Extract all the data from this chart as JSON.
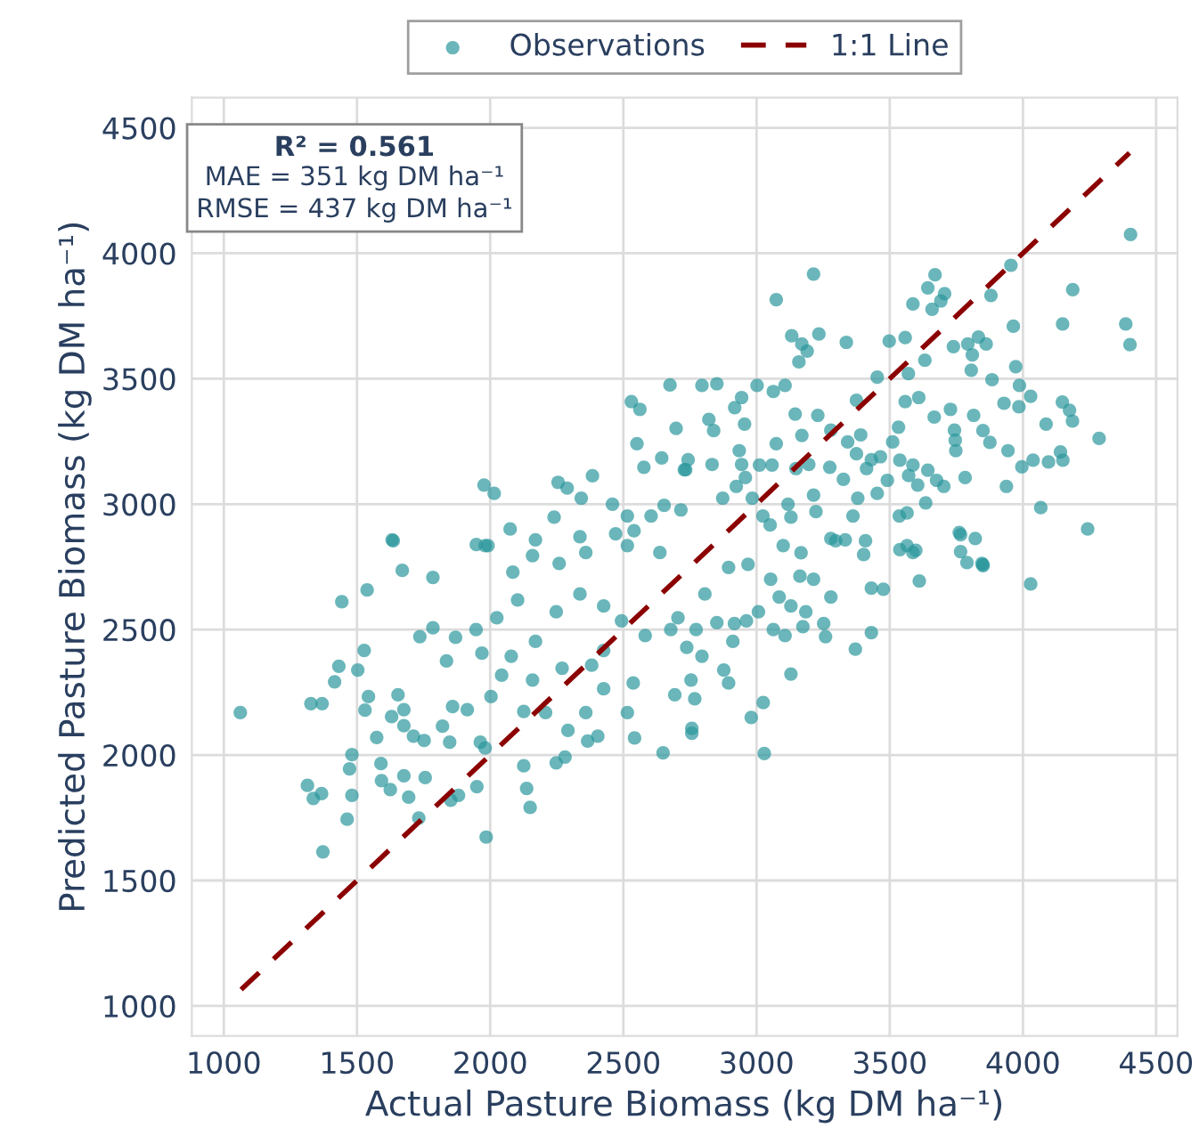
{
  "chart_data": {
    "type": "scatter",
    "xlabel": "Actual Pasture Biomass (kg DM ha⁻¹)",
    "ylabel": "Predicted Pasture Biomass (kg DM ha⁻¹)",
    "annotations": [
      "R² = 0.561",
      "MAE = 351 kg DM ha⁻¹",
      "RMSE = 437 kg DM ha⁻¹"
    ],
    "xlim": [
      880,
      4580
    ],
    "ylim": [
      880,
      4620
    ],
    "xticks": [
      1000,
      1500,
      2000,
      2500,
      3000,
      3500,
      4000,
      4500
    ],
    "yticks": [
      1000,
      1500,
      2000,
      2500,
      3000,
      3500,
      4000,
      4500
    ],
    "grid": true,
    "legend": "top",
    "marker": "circle",
    "series": [
      {
        "name": "Observations",
        "color": "#2b979c",
        "x": [
          1062,
          1314,
          1336,
          1367,
          1372,
          1327,
          1369,
          1416,
          1432,
          1443,
          1538,
          1503,
          1527,
          1543,
          1530,
          1481,
          1472,
          1481,
          1463,
          1574,
          1590,
          1592,
          1625,
          1676,
          1694,
          1732,
          1756,
          1630,
          1676,
          1712,
          1752,
          1676,
          1654,
          1670,
          1636,
          1785,
          1736,
          1785,
          1870,
          1836,
          1821,
          1848,
          1859,
          1914,
          1947,
          1969,
          1852,
          1881,
          1950,
          1963,
          1981,
          1985,
          2003,
          2043,
          2079,
          2126,
          2126,
          2137,
          2150,
          2159,
          2208,
          2248,
          2281,
          2292,
          2366,
          2404,
          2359,
          2426,
          2515,
          2542,
          2649,
          2025,
          2103,
          2170,
          2248,
          2337,
          2426,
          2493,
          2582,
          2678,
          2738,
          1981,
          2085,
          2159,
          2259,
          2359,
          2515,
          2637,
          2270,
          2381,
          2537,
          2426,
          2693,
          2675,
          2530,
          2562,
          2698,
          2551,
          2644,
          2577,
          2729,
          2384,
          2255,
          2289,
          1977,
          2015,
          2342,
          2240,
          2075,
          1632,
          1948,
          1992,
          2170,
          2337,
          2471,
          2540,
          2604,
          2653,
          2459,
          2515,
          2716,
          4404,
          4187,
          4149,
          4386,
          4402,
          3955,
          3214,
          3074,
          3670,
          3643,
          3706,
          3692,
          3659,
          3587,
          3880,
          3964,
          3132,
          3170,
          3190,
          3159,
          3234,
          3337,
          3498,
          3558,
          3632,
          3570,
          3453,
          3739,
          3793,
          3833,
          3862,
          3810,
          3806,
          3973,
          3884,
          3987,
          3985,
          4029,
          3929,
          4148,
          4175,
          4186,
          4087,
          4286,
          4141,
          4150,
          4096,
          4038,
          3996,
          3944,
          3938,
          4067,
          4243,
          3821,
          3761,
          3850,
          3743,
          3667,
          3728,
          3815,
          3850,
          3876,
          3746,
          3609,
          3558,
          3533,
          3511,
          3538,
          3587,
          3643,
          3676,
          3783,
          3748,
          3431,
          3465,
          3375,
          3342,
          3375,
          3391,
          3279,
          3230,
          3145,
          3107,
          3063,
          3002,
          2944,
          2918,
          2851,
          2795,
          2821,
          2839,
          2955,
          2935,
          3074,
          3170,
          3148,
          3196,
          3275,
          3058,
          3011,
          2958,
          2944,
          2924,
          2873,
          2833,
          2743,
          2734,
          2984,
          3024,
          3129,
          3223,
          3214,
          3326,
          3413,
          3491,
          3571,
          3605,
          3703,
          3536,
          3565,
          3635,
          3565,
          3598,
          3766,
          3846,
          3279,
          3333,
          3362,
          3380,
          3453,
          3402,
          3118,
          3051,
          3100,
          3167,
          4029,
          3850,
          3790,
          3611,
          3476,
          3431,
          3431,
          3371,
          3259,
          3252,
          3279,
          3214,
          3163,
          3129,
          3174,
          3107,
          3063,
          3025,
          2980,
          3029,
          2895,
          2877,
          2768,
          2754,
          2757,
          2757,
          2911,
          2917,
          2851,
          2806,
          2795,
          2773,
          2962,
          3007,
          3085,
          3129,
          3185,
          3297,
          3409,
          3766,
          3538,
          3587,
          3053,
          2968,
          2895,
          2705
        ],
        "values": [
          2169,
          1879,
          1827,
          1846,
          1614,
          2205,
          2205,
          2292,
          2354,
          2611,
          2658,
          2339,
          2417,
          2233,
          2179,
          2002,
          1945,
          1839,
          1744,
          2070,
          1966,
          1898,
          1862,
          1917,
          1832,
          1749,
          1910,
          2153,
          2117,
          2075,
          2058,
          2181,
          2240,
          2736,
          2854,
          2708,
          2472,
          2507,
          2469,
          2375,
          2115,
          2051,
          2193,
          2181,
          2500,
          2406,
          1820,
          1839,
          1874,
          2051,
          2028,
          1673,
          2233,
          2318,
          2394,
          2174,
          1957,
          1867,
          1791,
          2299,
          2169,
          1969,
          1992,
          2098,
          2056,
          2075,
          2169,
          2264,
          2169,
          2068,
          2009,
          2547,
          2618,
          2453,
          2571,
          2642,
          2594,
          2535,
          2476,
          2500,
          2429,
          2835,
          2729,
          2795,
          2764,
          2807,
          2835,
          2807,
          2346,
          2358,
          2287,
          2417,
          2240,
          3475,
          3409,
          3378,
          3302,
          3241,
          3184,
          3147,
          3137,
          3113,
          3087,
          3064,
          3076,
          3043,
          3024,
          2948,
          2901,
          2858,
          2839,
          2835,
          2858,
          2870,
          2882,
          2894,
          2953,
          2995,
          3000,
          2953,
          2977,
          4075,
          3855,
          3718,
          3718,
          3636,
          3952,
          3917,
          3815,
          3914,
          3862,
          3839,
          3810,
          3777,
          3798,
          3832,
          3709,
          3671,
          3638,
          3610,
          3567,
          3678,
          3645,
          3650,
          3664,
          3574,
          3520,
          3506,
          3628,
          3638,
          3666,
          3638,
          3595,
          3534,
          3548,
          3496,
          3473,
          3388,
          3430,
          3402,
          3407,
          3374,
          3331,
          3319,
          3262,
          3208,
          3175,
          3168,
          3175,
          3149,
          3213,
          3071,
          2986,
          2901,
          2863,
          2887,
          2759,
          3295,
          3347,
          3378,
          3354,
          3293,
          3246,
          3255,
          3425,
          3409,
          3307,
          3248,
          3175,
          3156,
          3135,
          3095,
          3106,
          3213,
          3177,
          3189,
          3201,
          3248,
          3414,
          3276,
          3295,
          3354,
          3359,
          3473,
          3449,
          3473,
          3425,
          3385,
          3480,
          3473,
          3338,
          3293,
          3319,
          3213,
          3241,
          3274,
          3142,
          3158,
          3147,
          3156,
          3156,
          3106,
          3158,
          3071,
          3024,
          3158,
          3177,
          3137,
          3024,
          2953,
          2948,
          2970,
          3036,
          3099,
          3142,
          3095,
          3114,
          3076,
          3071,
          2953,
          2965,
          3005,
          2835,
          2816,
          2811,
          2764,
          2863,
          2858,
          2953,
          3024,
          3043,
          2799,
          3000,
          2917,
          2835,
          2806,
          2682,
          2755,
          2767,
          2694,
          2661,
          2665,
          2488,
          2422,
          2472,
          2524,
          2630,
          2701,
          2713,
          2323,
          2512,
          2476,
          2500,
          2209,
          2150,
          2006,
          2287,
          2339,
          2224,
          2299,
          2106,
          2087,
          2453,
          2524,
          2528,
          2642,
          2394,
          2500,
          2535,
          2571,
          2630,
          2594,
          2571,
          2854,
          2854,
          2878,
          2819,
          2807,
          2701,
          2760,
          2748,
          2547
        ]
      },
      {
        "name": "1:1 Line",
        "type": "line",
        "color": "#8b0000",
        "line_style": "dashed",
        "marker": "none",
        "x": [
          1065,
          4400
        ],
        "values": [
          1065,
          4400
        ]
      }
    ]
  }
}
